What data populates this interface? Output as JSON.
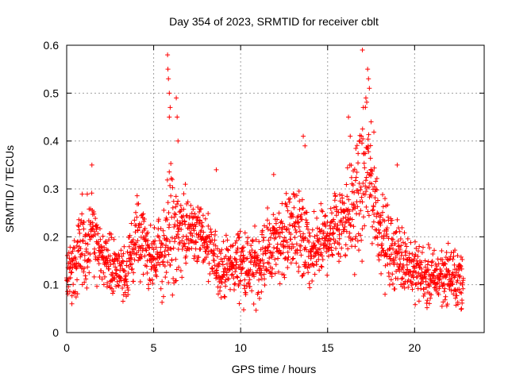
{
  "chart_data": {
    "type": "scatter",
    "title": "Day 354 of 2023, SRMTID for receiver cblt",
    "xlabel": "GPS time / hours",
    "ylabel": "SRMTID / TECUs",
    "xlim": [
      0,
      24
    ],
    "ylim": [
      0,
      0.6
    ],
    "xticks": [
      0,
      5,
      10,
      15,
      20
    ],
    "xtick_labels": [
      "0",
      "5",
      "10",
      "15",
      "20"
    ],
    "yticks": [
      0,
      0.1,
      0.2,
      0.3,
      0.4,
      0.5,
      0.6
    ],
    "ytick_labels": [
      "0",
      "0.1",
      "0.2",
      "0.3",
      "0.4",
      "0.5",
      "0.6"
    ],
    "grid": true,
    "marker": "+",
    "series": [
      {
        "name": "cblt",
        "color": "#ff0000",
        "envelope": {
          "description": "approximate mean and spread of SRMTID vs time (hours)",
          "x": [
            0,
            0.5,
            1.0,
            1.4,
            2.0,
            2.5,
            3.0,
            3.5,
            4.0,
            4.5,
            5.0,
            5.5,
            5.8,
            6.0,
            6.3,
            7.0,
            7.5,
            8.0,
            8.5,
            9.0,
            9.5,
            10.0,
            10.5,
            11.0,
            11.5,
            12.0,
            12.5,
            13.0,
            13.5,
            14.0,
            14.5,
            15.0,
            15.5,
            16.0,
            16.5,
            17.0,
            17.3,
            17.6,
            18.0,
            18.5,
            19.0,
            19.5,
            20.0,
            20.5,
            21.0,
            21.5,
            22.0,
            22.5,
            22.8
          ],
          "mean": [
            0.13,
            0.14,
            0.2,
            0.21,
            0.16,
            0.15,
            0.12,
            0.13,
            0.2,
            0.18,
            0.15,
            0.17,
            0.21,
            0.22,
            0.2,
            0.21,
            0.22,
            0.18,
            0.15,
            0.13,
            0.14,
            0.15,
            0.13,
            0.14,
            0.17,
            0.19,
            0.2,
            0.22,
            0.2,
            0.15,
            0.18,
            0.2,
            0.23,
            0.25,
            0.26,
            0.3,
            0.33,
            0.3,
            0.22,
            0.18,
            0.16,
            0.15,
            0.13,
            0.12,
            0.11,
            0.12,
            0.12,
            0.11,
            0.1
          ],
          "spread": [
            0.04,
            0.05,
            0.06,
            0.07,
            0.04,
            0.04,
            0.04,
            0.04,
            0.05,
            0.05,
            0.05,
            0.06,
            0.1,
            0.09,
            0.08,
            0.05,
            0.05,
            0.05,
            0.04,
            0.04,
            0.04,
            0.05,
            0.05,
            0.05,
            0.05,
            0.05,
            0.06,
            0.06,
            0.07,
            0.05,
            0.05,
            0.05,
            0.06,
            0.07,
            0.08,
            0.09,
            0.09,
            0.08,
            0.06,
            0.05,
            0.05,
            0.04,
            0.04,
            0.04,
            0.04,
            0.04,
            0.04,
            0.04,
            0.04
          ]
        },
        "peaks": [
          {
            "x": 0.3,
            "y": 0.06
          },
          {
            "x": 1.45,
            "y": 0.35
          },
          {
            "x": 5.8,
            "y": 0.58
          },
          {
            "x": 5.82,
            "y": 0.55
          },
          {
            "x": 5.85,
            "y": 0.53
          },
          {
            "x": 5.9,
            "y": 0.5
          },
          {
            "x": 5.95,
            "y": 0.47
          },
          {
            "x": 5.9,
            "y": 0.45
          },
          {
            "x": 6.3,
            "y": 0.49
          },
          {
            "x": 6.35,
            "y": 0.45
          },
          {
            "x": 6.4,
            "y": 0.4
          },
          {
            "x": 8.6,
            "y": 0.34
          },
          {
            "x": 11.9,
            "y": 0.33
          },
          {
            "x": 13.6,
            "y": 0.41
          },
          {
            "x": 13.7,
            "y": 0.39
          },
          {
            "x": 16.2,
            "y": 0.45
          },
          {
            "x": 16.3,
            "y": 0.41
          },
          {
            "x": 17.0,
            "y": 0.59
          },
          {
            "x": 17.3,
            "y": 0.55
          },
          {
            "x": 17.35,
            "y": 0.53
          },
          {
            "x": 17.4,
            "y": 0.51
          },
          {
            "x": 17.2,
            "y": 0.49
          },
          {
            "x": 17.05,
            "y": 0.47
          },
          {
            "x": 17.5,
            "y": 0.44
          },
          {
            "x": 19.0,
            "y": 0.35
          },
          {
            "x": 18.3,
            "y": 0.08
          },
          {
            "x": 22.7,
            "y": 0.05
          }
        ]
      }
    ]
  }
}
